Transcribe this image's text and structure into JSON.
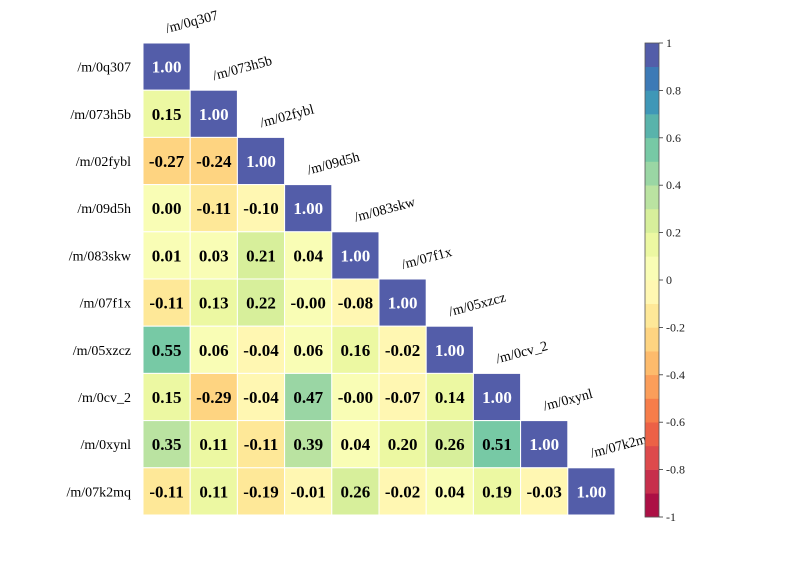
{
  "chart_data": {
    "type": "heatmap",
    "title": "",
    "xlabel": "",
    "ylabel": "",
    "layout": "lower-triangle",
    "labels": [
      "/m/0q307",
      "/m/073h5b",
      "/m/02fybl",
      "/m/09d5h",
      "/m/083skw",
      "/m/07f1x",
      "/m/05xzcz",
      "/m/0cv_2",
      "/m/0xynl",
      "/m/07k2mq"
    ],
    "matrix": [
      [
        1.0
      ],
      [
        0.15,
        1.0
      ],
      [
        -0.27,
        -0.24,
        1.0
      ],
      [
        0.0,
        -0.11,
        -0.1,
        1.0
      ],
      [
        0.01,
        0.03,
        0.21,
        0.04,
        1.0
      ],
      [
        -0.11,
        0.13,
        0.22,
        -0.0,
        -0.08,
        1.0
      ],
      [
        0.55,
        0.06,
        -0.04,
        0.06,
        0.16,
        -0.02,
        1.0
      ],
      [
        0.15,
        -0.29,
        -0.04,
        0.47,
        -0.0,
        -0.07,
        0.14,
        1.0
      ],
      [
        0.35,
        0.11,
        -0.11,
        0.39,
        0.04,
        0.2,
        0.26,
        0.51,
        1.0
      ],
      [
        -0.11,
        0.11,
        -0.19,
        -0.01,
        0.26,
        -0.02,
        0.04,
        0.19,
        -0.03,
        1.0
      ]
    ],
    "colorbar": {
      "range": [
        -1,
        1
      ],
      "ticks": [
        -1,
        -0.8,
        -0.6,
        -0.4,
        -0.2,
        0,
        0.2,
        0.4,
        0.6,
        0.8,
        1
      ],
      "tick_labels": [
        "-1",
        "-0.8",
        "-0.6",
        "-0.4",
        "-0.2",
        "0",
        "0.2",
        "0.4",
        "0.6",
        "0.8",
        "1"
      ],
      "levels": 20,
      "colormap": "Spectral",
      "position": "right"
    }
  }
}
